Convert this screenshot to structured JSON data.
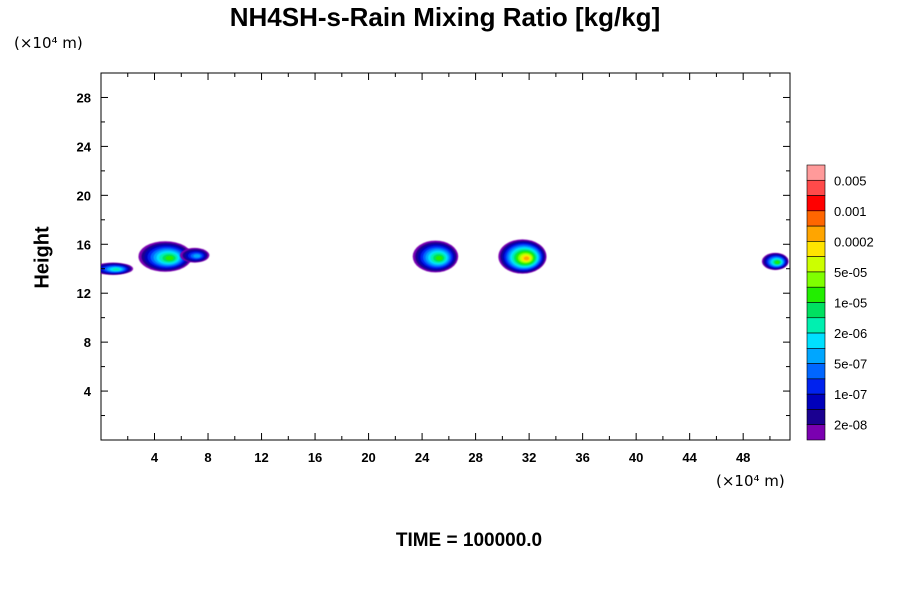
{
  "chart_data": {
    "type": "heatmap",
    "title": "NH4SH-s-Rain Mixing Ratio [kg/kg]",
    "xlabel": "",
    "ylabel": "Height",
    "x_unit": "(×10⁴ m)",
    "y_unit": "(×10⁴ m)",
    "xlim": [
      0,
      51.5
    ],
    "ylim": [
      0,
      30
    ],
    "x_ticks": [
      "4",
      "8",
      "12",
      "16",
      "20",
      "24",
      "28",
      "32",
      "36",
      "40",
      "44",
      "48"
    ],
    "y_ticks": [
      "4",
      "8",
      "12",
      "16",
      "20",
      "24",
      "28"
    ],
    "colorbar": {
      "labels": [
        "0.005",
        "0.001",
        "0.0002",
        "5e-05",
        "1e-05",
        "2e-06",
        "5e-07",
        "1e-07",
        "2e-08"
      ],
      "colors": [
        "#ff9a9a",
        "#ff4a4a",
        "#ff0000",
        "#ff6600",
        "#ffa500",
        "#ffe400",
        "#ccff00",
        "#7fff00",
        "#22ee00",
        "#00e060",
        "#00f0b0",
        "#00e0ff",
        "#00a6ff",
        "#0066ff",
        "#0022ee",
        "#0000bb",
        "#1a0090",
        "#7a00b0"
      ]
    },
    "features": [
      {
        "x_center": 0.9,
        "y_center": 14.0,
        "x_extent": 3.0,
        "y_extent": 1.0,
        "peak": "2e-06"
      },
      {
        "x_center": 4.8,
        "y_center": 15.0,
        "x_extent": 4.0,
        "y_extent": 2.5,
        "peak": "1e-05"
      },
      {
        "x_center": 7.0,
        "y_center": 15.1,
        "x_extent": 2.2,
        "y_extent": 1.2,
        "peak": "5e-07"
      },
      {
        "x_center": 25.0,
        "y_center": 15.0,
        "x_extent": 3.4,
        "y_extent": 2.6,
        "peak": "1e-05"
      },
      {
        "x_center": 31.5,
        "y_center": 15.0,
        "x_extent": 3.6,
        "y_extent": 2.8,
        "peak": "0.0002"
      },
      {
        "x_center": 50.4,
        "y_center": 14.6,
        "x_extent": 2.0,
        "y_extent": 1.4,
        "peak": "1e-05"
      }
    ]
  },
  "footer": {
    "time_text": "TIME = 100000.0"
  }
}
